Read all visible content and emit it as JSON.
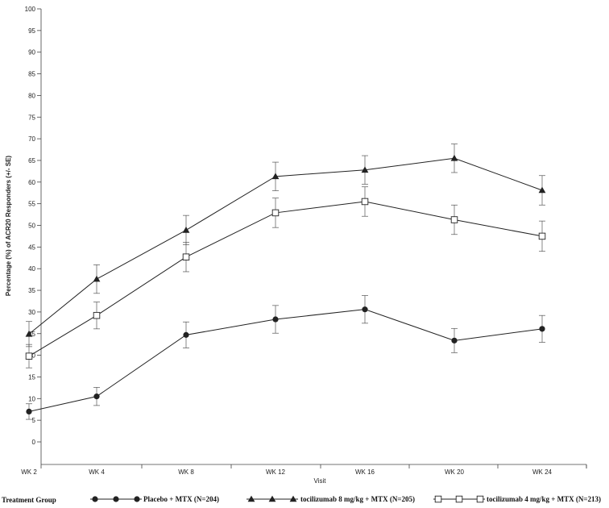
{
  "chart_data": {
    "type": "line",
    "title": "",
    "xlabel": "Visit",
    "ylabel": "Percentage (%) of ACR20 Responders (+/- SE)",
    "categories": [
      "WK 2",
      "WK 4",
      "WK 8",
      "WK 12",
      "WK 16",
      "WK 20",
      "WK 24"
    ],
    "ylim": [
      0,
      100
    ],
    "yticks": [
      0,
      5,
      10,
      15,
      20,
      25,
      30,
      35,
      40,
      45,
      50,
      55,
      60,
      65,
      70,
      75,
      80,
      85,
      90,
      95,
      100
    ],
    "grid": false,
    "legend_title": "Treatment Group",
    "legend_position": "bottom",
    "series": [
      {
        "name": "Placebo + MTX (N=204)",
        "marker": "filled-circle",
        "color": "#222222",
        "values": [
          7.0,
          10.5,
          24.7,
          28.3,
          30.6,
          23.4,
          26.1
        ],
        "se": [
          1.8,
          2.1,
          3.0,
          3.2,
          3.2,
          2.8,
          3.1
        ]
      },
      {
        "name": "tocilizumab 8 mg/kg + MTX (N=205)",
        "marker": "filled-triangle",
        "color": "#222222",
        "values": [
          24.9,
          37.6,
          48.9,
          61.3,
          62.8,
          65.5,
          58.1
        ],
        "se": [
          2.9,
          3.3,
          3.4,
          3.3,
          3.3,
          3.3,
          3.4
        ]
      },
      {
        "name": "tocilizumab 4 mg/kg + MTX (N=213)",
        "marker": "open-square",
        "color": "#222222",
        "values": [
          19.8,
          29.2,
          42.7,
          52.9,
          55.5,
          51.3,
          47.5
        ],
        "se": [
          2.7,
          3.1,
          3.4,
          3.4,
          3.4,
          3.4,
          3.5
        ]
      }
    ]
  }
}
